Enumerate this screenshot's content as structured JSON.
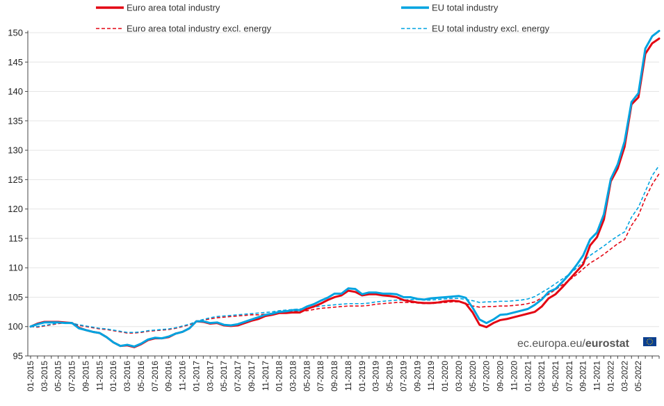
{
  "chart_data": {
    "type": "line",
    "title": "",
    "xlabel": "",
    "ylabel": "",
    "ylim": [
      95,
      150
    ],
    "yticks": [
      95,
      100,
      105,
      110,
      115,
      120,
      125,
      130,
      135,
      140,
      145,
      150
    ],
    "xticks": [
      "01-2015",
      "03-2015",
      "05-2015",
      "07-2015",
      "09-2015",
      "11-2015",
      "01-2016",
      "03-2016",
      "05-2016",
      "07-2016",
      "09-2016",
      "11-2016",
      "01-2017",
      "03-2017",
      "05-2017",
      "07-2017",
      "09-2017",
      "11-2017",
      "01-2018",
      "03-2018",
      "05-2018",
      "07-2018",
      "09-2018",
      "11-2018",
      "01-2019",
      "03-2019",
      "05-2019",
      "07-2019",
      "09-2019",
      "11-2019",
      "01-2020",
      "03-2020",
      "05-2020",
      "07-2020",
      "09-2020",
      "11-2020",
      "01-2021",
      "03-2021",
      "05-2021",
      "07-2021",
      "09-2021",
      "11-2021",
      "01-2022",
      "03-2022",
      "05-2022"
    ],
    "x_start": "01-2015",
    "frequency": "monthly",
    "grid": "horizontal",
    "legend_position": "top",
    "series": [
      {
        "name": "Euro area total industry",
        "color": "#e30613",
        "style": "solid",
        "values": [
          100.0,
          100.5,
          100.8,
          100.8,
          100.8,
          100.7,
          100.6,
          99.8,
          99.4,
          99.1,
          98.9,
          98.2,
          97.3,
          96.7,
          96.8,
          96.5,
          97.0,
          97.7,
          98.0,
          98.0,
          98.2,
          98.8,
          99.1,
          99.7,
          100.9,
          100.8,
          100.5,
          100.6,
          100.2,
          100.1,
          100.2,
          100.6,
          101.0,
          101.3,
          101.8,
          102.0,
          102.3,
          102.3,
          102.4,
          102.4,
          103.0,
          103.4,
          103.9,
          104.5,
          105.0,
          105.3,
          106.1,
          105.9,
          105.3,
          105.5,
          105.5,
          105.3,
          105.2,
          105.0,
          104.5,
          104.3,
          104.1,
          104.0,
          104.0,
          104.1,
          104.3,
          104.4,
          104.3,
          103.9,
          102.4,
          100.3,
          99.9,
          100.6,
          101.1,
          101.3,
          101.6,
          101.9,
          102.2,
          102.5,
          103.4,
          104.8,
          105.5,
          106.7,
          108.0,
          109.3,
          110.6,
          113.8,
          115.2,
          118.2,
          124.7,
          126.9,
          130.6,
          137.8,
          139.0,
          146.4,
          148.2,
          149.0
        ]
      },
      {
        "name": "EU total industry",
        "color": "#00a3e0",
        "style": "solid",
        "values": [
          100.0,
          100.4,
          100.7,
          100.7,
          100.7,
          100.6,
          100.6,
          99.7,
          99.4,
          99.1,
          98.9,
          98.2,
          97.3,
          96.7,
          96.9,
          96.6,
          97.1,
          97.8,
          98.1,
          98.0,
          98.3,
          98.8,
          99.1,
          99.7,
          100.9,
          100.9,
          100.6,
          100.7,
          100.3,
          100.2,
          100.4,
          100.8,
          101.2,
          101.6,
          102.0,
          102.2,
          102.5,
          102.6,
          102.8,
          102.8,
          103.4,
          103.8,
          104.4,
          104.9,
          105.6,
          105.6,
          106.5,
          106.4,
          105.5,
          105.8,
          105.8,
          105.6,
          105.6,
          105.5,
          105.0,
          105.0,
          104.7,
          104.6,
          104.8,
          104.9,
          105.0,
          105.1,
          105.2,
          104.9,
          103.2,
          101.2,
          100.6,
          101.2,
          102.0,
          102.1,
          102.4,
          102.7,
          103.0,
          103.7,
          104.6,
          105.9,
          106.4,
          107.6,
          108.9,
          110.4,
          112.1,
          114.8,
          116.0,
          119.1,
          125.1,
          127.6,
          131.5,
          138.2,
          139.7,
          147.3,
          149.4,
          150.3
        ]
      },
      {
        "name": "Euro area total industry excl. energy",
        "color": "#e30613",
        "style": "dashed",
        "values": [
          100.0,
          99.9,
          100.1,
          100.3,
          100.5,
          100.6,
          100.5,
          100.2,
          100.0,
          99.8,
          99.6,
          99.5,
          99.3,
          99.1,
          98.9,
          98.9,
          99.0,
          99.2,
          99.3,
          99.4,
          99.5,
          99.7,
          100.0,
          100.3,
          100.8,
          101.1,
          101.3,
          101.5,
          101.6,
          101.7,
          101.8,
          101.9,
          102.0,
          102.0,
          102.1,
          102.2,
          102.4,
          102.5,
          102.6,
          102.6,
          102.7,
          102.9,
          103.1,
          103.2,
          103.3,
          103.4,
          103.5,
          103.5,
          103.5,
          103.6,
          103.8,
          103.9,
          104.0,
          104.1,
          104.1,
          104.1,
          104.0,
          103.9,
          103.9,
          104.0,
          104.1,
          104.2,
          104.2,
          103.9,
          103.5,
          103.3,
          103.4,
          103.4,
          103.5,
          103.5,
          103.6,
          103.7,
          103.9,
          104.2,
          104.9,
          105.5,
          106.3,
          107.1,
          107.9,
          108.8,
          109.8,
          110.8,
          111.5,
          112.3,
          113.2,
          114.1,
          114.8,
          117.2,
          118.9,
          121.8,
          124.2,
          126.0
        ]
      },
      {
        "name": "EU total industry excl. energy",
        "color": "#00a3e0",
        "style": "dashed",
        "values": [
          100.0,
          100.0,
          100.2,
          100.4,
          100.6,
          100.7,
          100.6,
          100.3,
          100.1,
          99.9,
          99.7,
          99.6,
          99.4,
          99.2,
          99.0,
          99.0,
          99.1,
          99.3,
          99.4,
          99.5,
          99.6,
          99.8,
          100.1,
          100.4,
          100.9,
          101.2,
          101.5,
          101.7,
          101.8,
          101.9,
          102.0,
          102.1,
          102.2,
          102.3,
          102.4,
          102.5,
          102.7,
          102.8,
          102.9,
          103.0,
          103.1,
          103.3,
          103.5,
          103.6,
          103.7,
          103.8,
          103.9,
          103.9,
          103.9,
          104.0,
          104.2,
          104.3,
          104.4,
          104.5,
          104.5,
          104.6,
          104.6,
          104.5,
          104.5,
          104.6,
          104.7,
          104.8,
          104.8,
          104.6,
          104.4,
          104.1,
          104.2,
          104.2,
          104.3,
          104.3,
          104.4,
          104.5,
          104.7,
          105.1,
          105.8,
          106.5,
          107.3,
          108.1,
          108.9,
          109.9,
          111.0,
          112.1,
          112.9,
          113.7,
          114.6,
          115.4,
          116.1,
          118.6,
          120.3,
          123.0,
          125.7,
          127.4
        ]
      }
    ]
  },
  "watermark": {
    "site": "ec.europa.eu/",
    "brand": "eurostat"
  }
}
